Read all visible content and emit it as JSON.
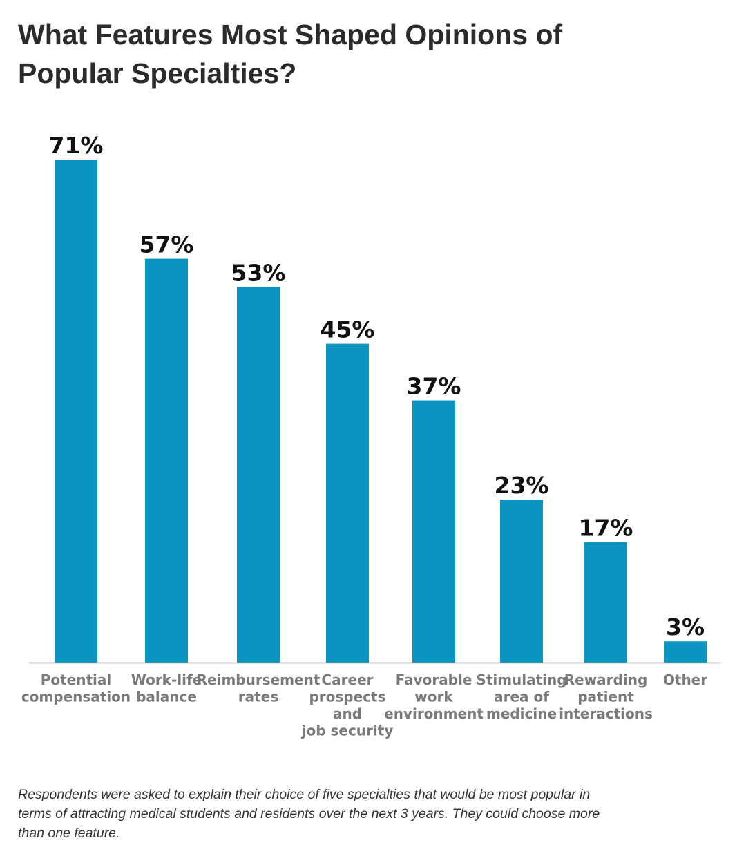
{
  "title_lines": [
    "What Features Most Shaped Opinions of",
    "Popular Specialties?"
  ],
  "note_lines": [
    "Respondents were asked to explain their choice of five specialties that would be most popular in",
    "terms of attracting medical students and residents over the next 3 years. They could choose more",
    "than one feature."
  ],
  "colors": {
    "bar": "#0b93c1",
    "axis": "#9a9a9a",
    "label": "#7a7a7a"
  },
  "chart_data": {
    "type": "bar",
    "title": "What Features Most Shaped Opinions of Popular Specialties?",
    "categories": [
      [
        "Potential",
        "compensation"
      ],
      [
        "Work-life",
        "balance"
      ],
      [
        "Reimbursement",
        "rates"
      ],
      [
        "Career",
        "prospects",
        "and",
        "job security"
      ],
      [
        "Favorable",
        "work",
        "environment"
      ],
      [
        "Stimulating",
        "area of",
        "medicine"
      ],
      [
        "Rewarding",
        "patient",
        "interactions"
      ],
      [
        "Other"
      ]
    ],
    "values": [
      71,
      57,
      53,
      45,
      37,
      23,
      17,
      3
    ],
    "value_labels": [
      "71%",
      "57%",
      "53%",
      "45%",
      "37%",
      "23%",
      "17%",
      "3%"
    ],
    "ylim": [
      0,
      71
    ],
    "grid": false
  }
}
